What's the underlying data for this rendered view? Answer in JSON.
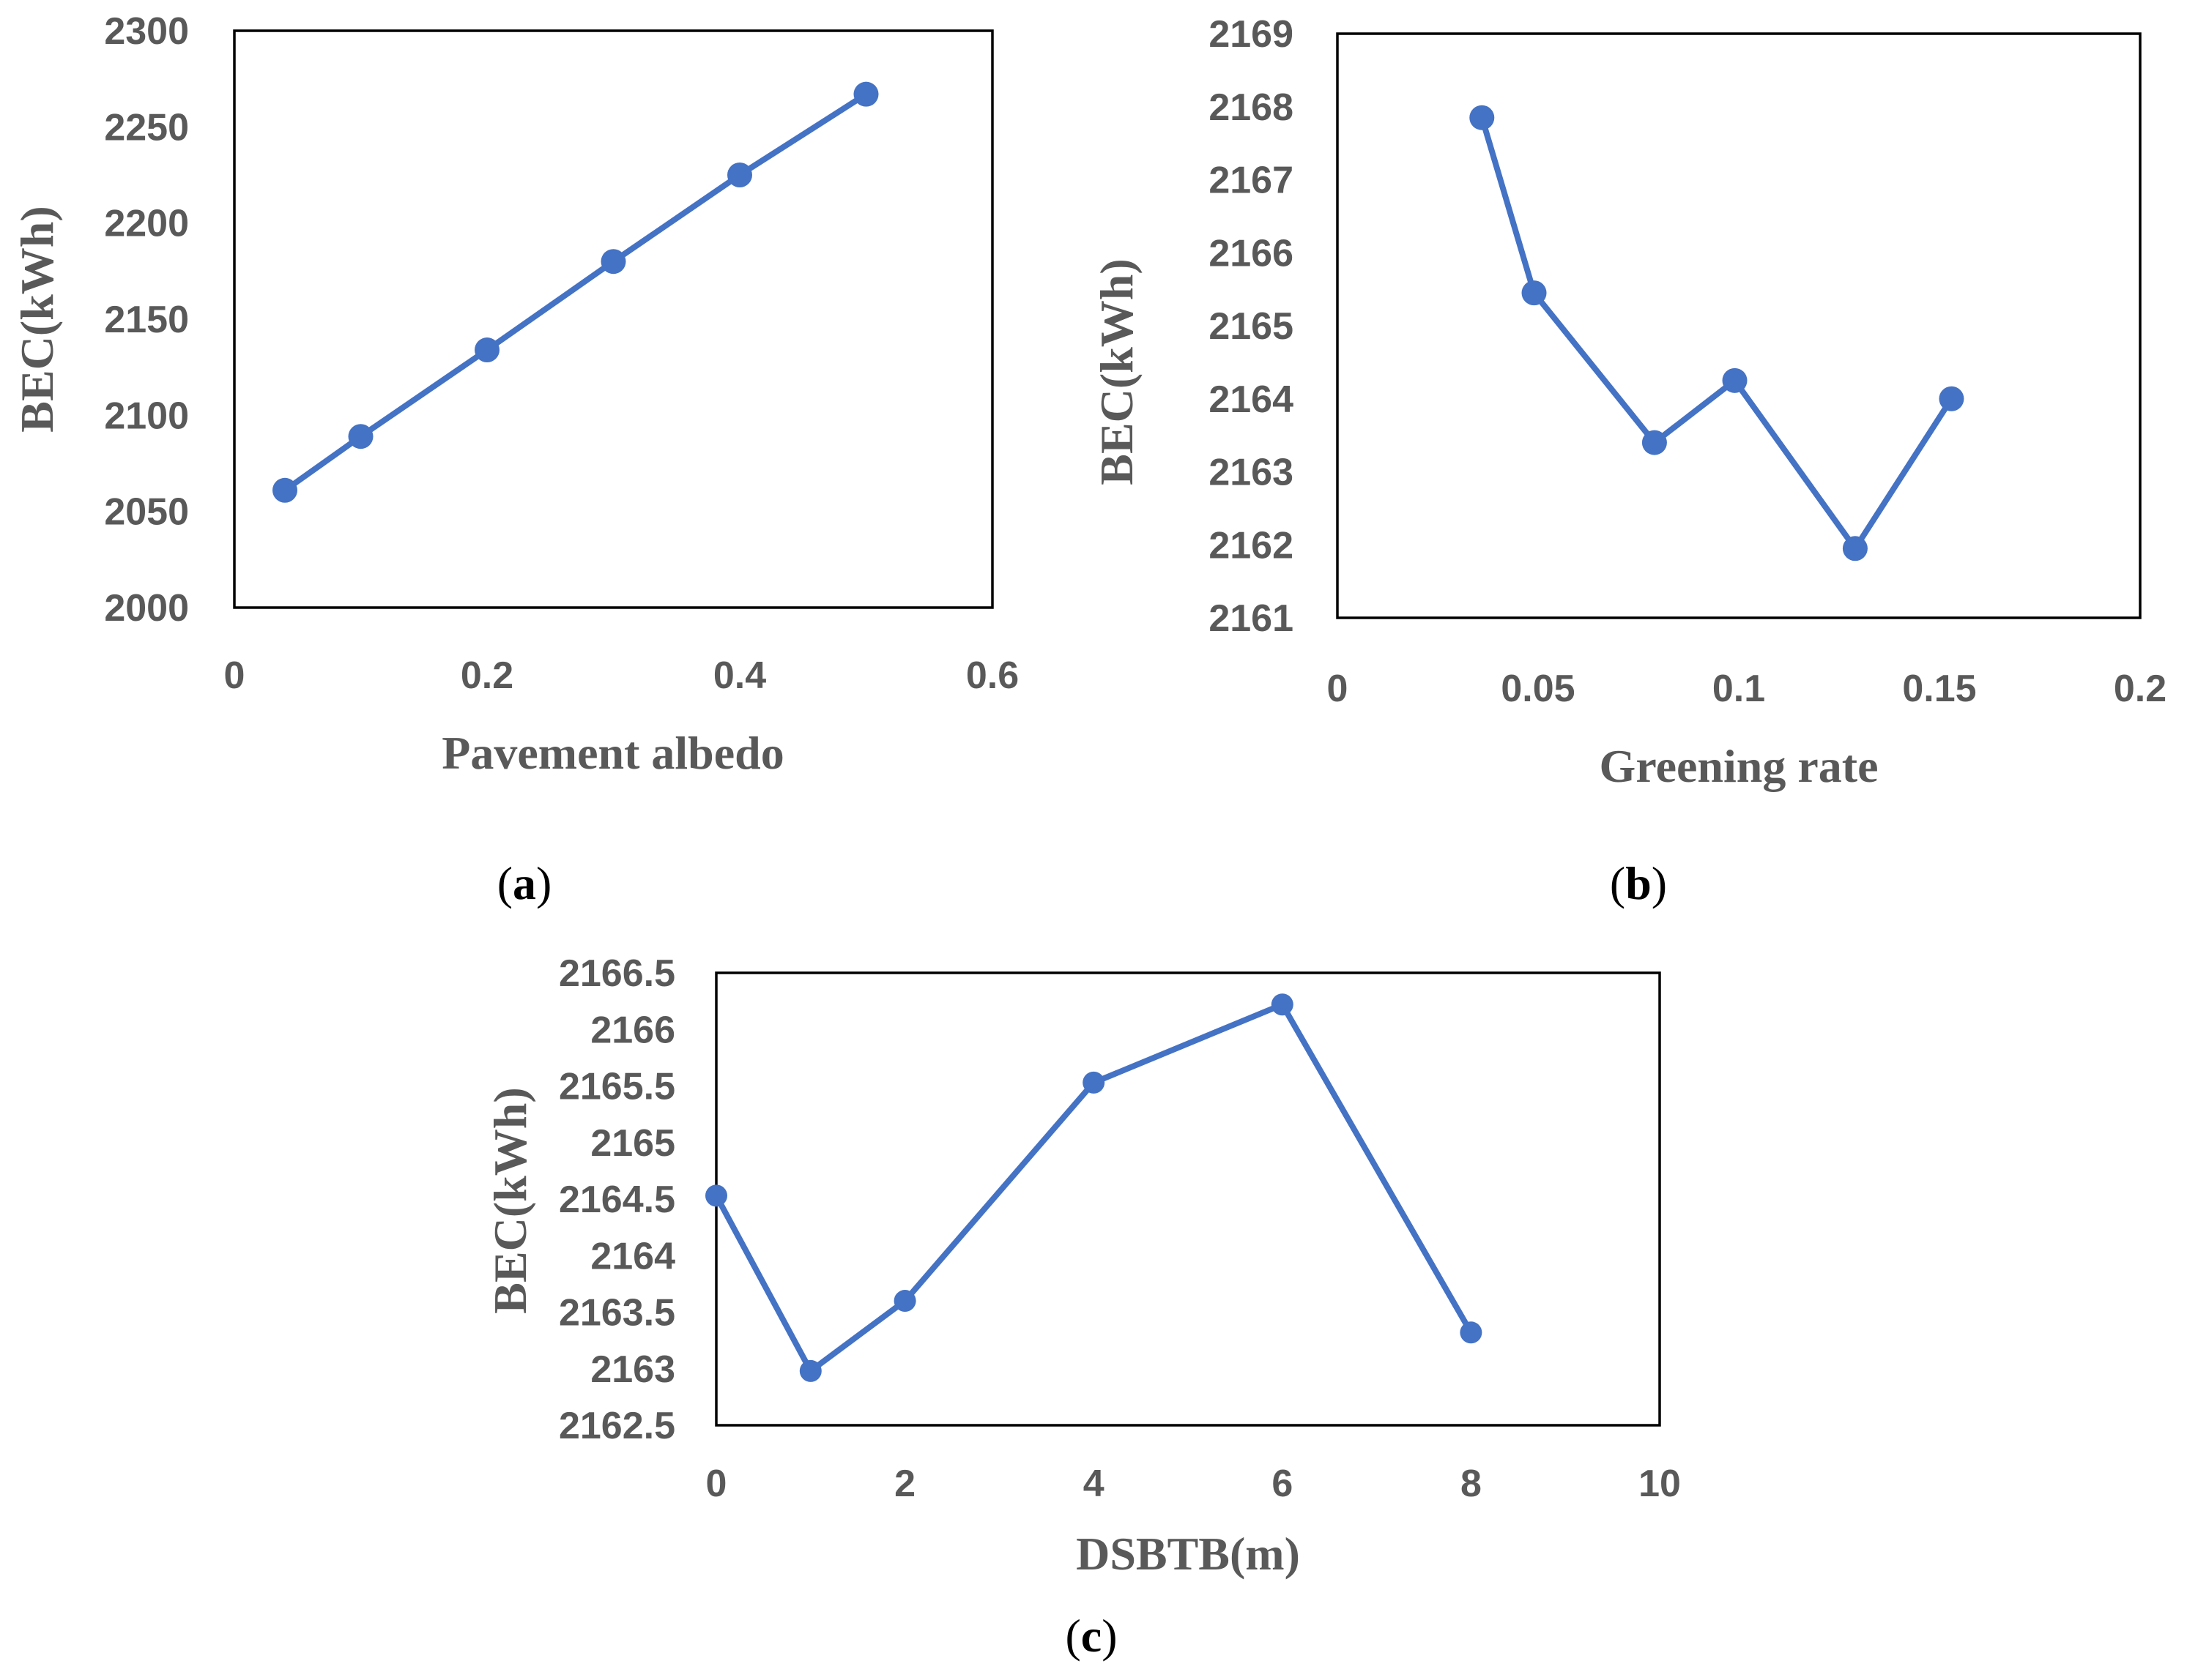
{
  "series_color": "#4472C4",
  "chart_data": [
    {
      "id": "a",
      "type": "line",
      "panel_label": "a",
      "xlabel": "Pavement albedo",
      "ylabel": "BEC(kWh)",
      "xlim": [
        0,
        0.6
      ],
      "ylim": [
        2000,
        2300
      ],
      "x_ticks": [
        0,
        0.2,
        0.4,
        0.6
      ],
      "x_tick_labels": [
        "0",
        "0.2",
        "0.4",
        "0.6"
      ],
      "y_ticks": [
        2000,
        2050,
        2100,
        2150,
        2200,
        2250,
        2300
      ],
      "y_tick_labels": [
        "2000",
        "2050",
        "2100",
        "2150",
        "2200",
        "2250",
        "2300"
      ],
      "x": [
        0.04,
        0.1,
        0.2,
        0.3,
        0.4,
        0.5
      ],
      "y": [
        2061,
        2089,
        2134,
        2180,
        2225,
        2267
      ]
    },
    {
      "id": "b",
      "type": "line",
      "panel_label": "b",
      "xlabel": "Greening rate",
      "ylabel": "BEC(kWh)",
      "xlim": [
        0,
        0.2
      ],
      "ylim": [
        2161,
        2169
      ],
      "x_ticks": [
        0,
        0.05,
        0.1,
        0.15,
        0.2
      ],
      "x_tick_labels": [
        "0",
        "0.05",
        "0.1",
        "0.15",
        "0.2"
      ],
      "y_ticks": [
        2161,
        2162,
        2163,
        2164,
        2165,
        2166,
        2167,
        2168,
        2169
      ],
      "y_tick_labels": [
        "2161",
        "2162",
        "2163",
        "2164",
        "2165",
        "2166",
        "2167",
        "2168",
        "2169"
      ],
      "x": [
        0.036,
        0.049,
        0.079,
        0.099,
        0.129,
        0.153
      ],
      "y": [
        2167.85,
        2165.45,
        2163.4,
        2164.25,
        2161.95,
        2164.0
      ]
    },
    {
      "id": "c",
      "type": "line",
      "panel_label": "c",
      "xlabel": "DSBTB(m)",
      "ylabel": "BEC(kWh)",
      "xlim": [
        0,
        10
      ],
      "ylim": [
        2162.5,
        2166.5
      ],
      "x_ticks": [
        0,
        2,
        4,
        6,
        8,
        10
      ],
      "x_tick_labels": [
        "0",
        "2",
        "4",
        "6",
        "8",
        "10"
      ],
      "y_ticks": [
        2162.5,
        2163,
        2163.5,
        2164,
        2164.5,
        2165,
        2165.5,
        2166,
        2166.5
      ],
      "y_tick_labels": [
        "2162.5",
        "2163",
        "2163.5",
        "2164",
        "2164.5",
        "2165",
        "2165.5",
        "2166",
        "2166.5"
      ],
      "x": [
        0,
        1,
        2,
        4,
        6,
        8
      ],
      "y": [
        2164.53,
        2162.98,
        2163.6,
        2165.53,
        2166.22,
        2163.32
      ]
    }
  ]
}
